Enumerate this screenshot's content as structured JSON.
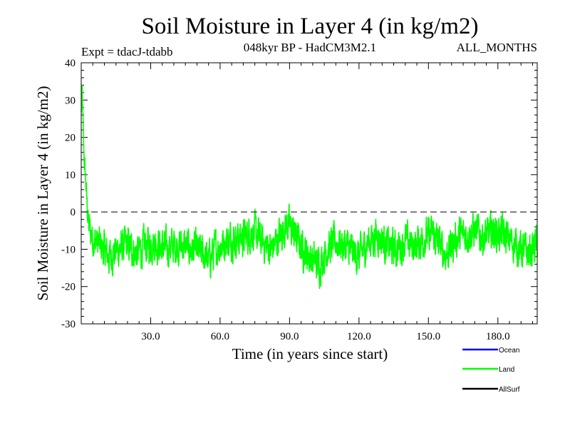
{
  "chart_data": {
    "type": "line",
    "title": "Soil Moisture in Layer 4 (in kg/m2)",
    "subtitle": "048kyr BP - HadCM3M2.1",
    "expt_label": "Expt = tdacJ-tdabb",
    "season_label": "ALL_MONTHS",
    "xlabel": "Time (in years since start)",
    "ylabel": "Soil Moisture in Layer 4 (in kg/m2)",
    "xlim": [
      0,
      197
    ],
    "ylim": [
      -30,
      40
    ],
    "x_ticks": [
      30,
      60,
      90,
      120,
      150,
      180
    ],
    "x_tick_labels": [
      "30.0",
      "60.0",
      "90.0",
      "120.0",
      "150.0",
      "180.0"
    ],
    "y_ticks": [
      -30,
      -20,
      -10,
      0,
      10,
      20,
      30,
      40
    ],
    "y_tick_labels": [
      "-30",
      "-20",
      "-10",
      "0",
      "10",
      "20",
      "30",
      "40"
    ],
    "reference_line": {
      "y": 0,
      "style": "dashed"
    },
    "legend": {
      "placement": "bottom-right",
      "entries": [
        {
          "name": "Ocean",
          "color": "#0000ff"
        },
        {
          "name": "Land",
          "color": "#00ff00"
        },
        {
          "name": "AllSurf",
          "color": "#000000"
        }
      ]
    },
    "series": [
      {
        "name": "Land",
        "color": "#00ff00",
        "sampling": "monthly, 12 samples per year",
        "anchors": [
          [
            0,
            26
          ],
          [
            0.3,
            34
          ],
          [
            0.8,
            22
          ],
          [
            1.3,
            14
          ],
          [
            2,
            8
          ],
          [
            2.6,
            1
          ],
          [
            3.2,
            -4
          ],
          [
            5,
            -7
          ],
          [
            8,
            -9
          ],
          [
            12,
            -12
          ],
          [
            16,
            -10
          ],
          [
            20,
            -9
          ],
          [
            24,
            -11
          ],
          [
            28,
            -9
          ],
          [
            32,
            -8
          ],
          [
            36,
            -10
          ],
          [
            40,
            -9
          ],
          [
            44,
            -9
          ],
          [
            48,
            -10
          ],
          [
            52,
            -11
          ],
          [
            55,
            -13
          ],
          [
            58,
            -10
          ],
          [
            62,
            -8
          ],
          [
            66,
            -7
          ],
          [
            70,
            -7
          ],
          [
            74,
            -5
          ],
          [
            78,
            -8
          ],
          [
            82,
            -10
          ],
          [
            86,
            -6
          ],
          [
            89,
            -3
          ],
          [
            92,
            -6
          ],
          [
            96,
            -10
          ],
          [
            100,
            -13
          ],
          [
            103,
            -14
          ],
          [
            106,
            -10
          ],
          [
            110,
            -8
          ],
          [
            114,
            -9
          ],
          [
            118,
            -11
          ],
          [
            120,
            -12
          ],
          [
            124,
            -8
          ],
          [
            128,
            -6
          ],
          [
            132,
            -9
          ],
          [
            136,
            -10
          ],
          [
            140,
            -8
          ],
          [
            144,
            -9
          ],
          [
            148,
            -7
          ],
          [
            152,
            -6
          ],
          [
            156,
            -10
          ],
          [
            158,
            -11
          ],
          [
            162,
            -7
          ],
          [
            166,
            -6
          ],
          [
            170,
            -5
          ],
          [
            174,
            -7
          ],
          [
            178,
            -5
          ],
          [
            182,
            -6
          ],
          [
            186,
            -8
          ],
          [
            190,
            -10
          ],
          [
            194,
            -11
          ],
          [
            197,
            -8
          ]
        ],
        "noise_amplitude": 3.8
      }
    ]
  }
}
